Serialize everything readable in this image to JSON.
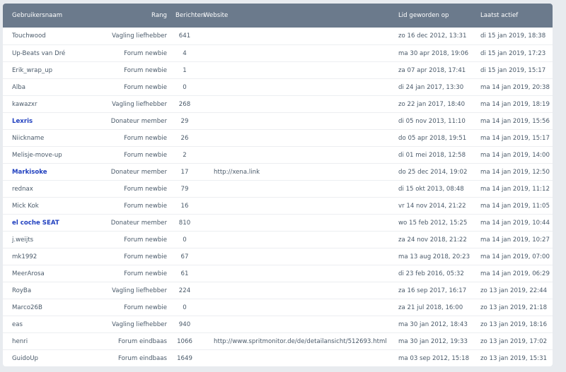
{
  "header": {
    "name": "Gebruikersnaam",
    "rank": "Rang",
    "posts": "Berichten",
    "website": "Website",
    "joined": "Lid geworden op",
    "last_active": "Laatst actief"
  },
  "colors": {
    "header_bg": "#6b7a8c",
    "donor_name": "#1f3fbf",
    "text": "#4a5a6a"
  },
  "rows": [
    {
      "name": "Touchwood",
      "rank": "Vagling liefhebber",
      "posts": "641",
      "website": "",
      "joined": "zo 16 dec 2012, 13:31",
      "last": "di 15 jan 2019, 18:38",
      "donor": false
    },
    {
      "name": "Up-Beats van Dré",
      "rank": "Forum newbie",
      "posts": "4",
      "website": "",
      "joined": "ma 30 apr 2018, 19:06",
      "last": "di 15 jan 2019, 17:23",
      "donor": false
    },
    {
      "name": "Erik_wrap_up",
      "rank": "Forum newbie",
      "posts": "1",
      "website": "",
      "joined": "za 07 apr 2018, 17:41",
      "last": "di 15 jan 2019, 15:17",
      "donor": false
    },
    {
      "name": "Alba",
      "rank": "Forum newbie",
      "posts": "0",
      "website": "",
      "joined": "di 24 jan 2017, 13:30",
      "last": "ma 14 jan 2019, 20:38",
      "donor": false
    },
    {
      "name": "kawazxr",
      "rank": "Vagling liefhebber",
      "posts": "268",
      "website": "",
      "joined": "zo 22 jan 2017, 18:40",
      "last": "ma 14 jan 2019, 18:19",
      "donor": false
    },
    {
      "name": "Lexris",
      "rank": "Donateur member",
      "posts": "29",
      "website": "",
      "joined": "di 05 nov 2013, 11:10",
      "last": "ma 14 jan 2019, 15:56",
      "donor": true
    },
    {
      "name": "Niickname",
      "rank": "Forum newbie",
      "posts": "26",
      "website": "",
      "joined": "do 05 apr 2018, 19:51",
      "last": "ma 14 jan 2019, 15:17",
      "donor": false
    },
    {
      "name": "Melisje-move-up",
      "rank": "Forum newbie",
      "posts": "2",
      "website": "",
      "joined": "di 01 mei 2018, 12:58",
      "last": "ma 14 jan 2019, 14:00",
      "donor": false
    },
    {
      "name": "Markisoke",
      "rank": "Donateur member",
      "posts": "17",
      "website": "http://xena.link",
      "joined": "do 25 dec 2014, 19:02",
      "last": "ma 14 jan 2019, 12:50",
      "donor": true
    },
    {
      "name": "rednax",
      "rank": "Forum newbie",
      "posts": "79",
      "website": "",
      "joined": "di 15 okt 2013, 08:48",
      "last": "ma 14 jan 2019, 11:12",
      "donor": false
    },
    {
      "name": "Mick Kok",
      "rank": "Forum newbie",
      "posts": "16",
      "website": "",
      "joined": "vr 14 nov 2014, 21:22",
      "last": "ma 14 jan 2019, 11:05",
      "donor": false
    },
    {
      "name": "el coche SEAT",
      "rank": "Donateur member",
      "posts": "810",
      "website": "",
      "joined": "wo 15 feb 2012, 15:25",
      "last": "ma 14 jan 2019, 10:44",
      "donor": true
    },
    {
      "name": "j.weijts",
      "rank": "Forum newbie",
      "posts": "0",
      "website": "",
      "joined": "za 24 nov 2018, 21:22",
      "last": "ma 14 jan 2019, 10:27",
      "donor": false
    },
    {
      "name": "mk1992",
      "rank": "Forum newbie",
      "posts": "67",
      "website": "",
      "joined": "ma 13 aug 2018, 20:23",
      "last": "ma 14 jan 2019, 07:00",
      "donor": false
    },
    {
      "name": "MeerArosa",
      "rank": "Forum newbie",
      "posts": "61",
      "website": "",
      "joined": "di 23 feb 2016, 05:32",
      "last": "ma 14 jan 2019, 06:29",
      "donor": false
    },
    {
      "name": "RoyBa",
      "rank": "Vagling liefhebber",
      "posts": "224",
      "website": "",
      "joined": "za 16 sep 2017, 16:17",
      "last": "zo 13 jan 2019, 22:44",
      "donor": false
    },
    {
      "name": "Marco26B",
      "rank": "Forum newbie",
      "posts": "0",
      "website": "",
      "joined": "za 21 jul 2018, 16:00",
      "last": "zo 13 jan 2019, 21:18",
      "donor": false
    },
    {
      "name": "eas",
      "rank": "Vagling liefhebber",
      "posts": "940",
      "website": "",
      "joined": "ma 30 jan 2012, 18:43",
      "last": "zo 13 jan 2019, 18:16",
      "donor": false
    },
    {
      "name": "henri",
      "rank": "Forum eindbaas",
      "posts": "1066",
      "website": "http://www.spritmonitor.de/de/detailansicht/512693.html",
      "joined": "ma 30 jan 2012, 19:33",
      "last": "zo 13 jan 2019, 17:02",
      "donor": false
    },
    {
      "name": "GuidoUp",
      "rank": "Forum eindbaas",
      "posts": "1649",
      "website": "",
      "joined": "ma 03 sep 2012, 15:18",
      "last": "zo 13 jan 2019, 15:31",
      "donor": false
    }
  ]
}
